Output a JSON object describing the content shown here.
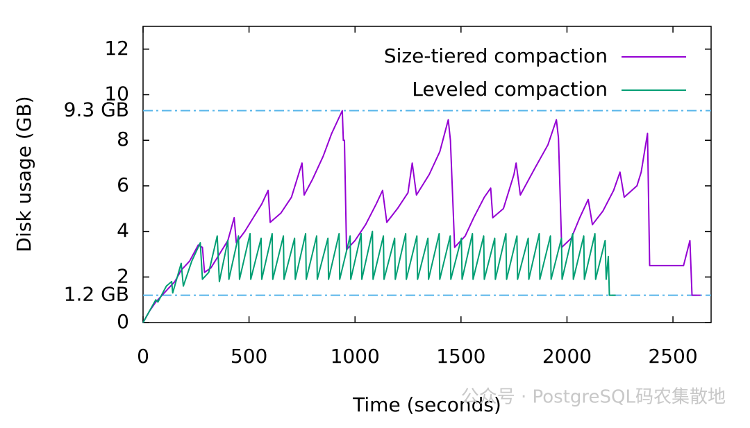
{
  "chart_data": {
    "type": "line",
    "xlabel": "Time (seconds)",
    "ylabel": "Disk usage (GB)",
    "xlim": [
      0,
      2680
    ],
    "ylim": [
      0,
      13
    ],
    "xticks": [
      0,
      500,
      1000,
      1500,
      2000,
      2500
    ],
    "yticks": [
      0,
      2,
      4,
      6,
      8,
      10,
      12
    ],
    "grid": false,
    "legend": "top-right",
    "reference_lines": [
      {
        "value": 9.3,
        "label": "9.3 GB",
        "color": "#56b4e9"
      },
      {
        "value": 1.2,
        "label": "1.2 GB",
        "color": "#56b4e9"
      }
    ],
    "series": [
      {
        "name": "Size-tiered compaction",
        "color": "#9400d3",
        "x": [
          0,
          30,
          60,
          90,
          120,
          150,
          180,
          220,
          260,
          280,
          290,
          320,
          360,
          400,
          430,
          440,
          480,
          520,
          560,
          590,
          600,
          650,
          700,
          750,
          760,
          800,
          850,
          890,
          940,
          945,
          950,
          960,
          1000,
          1050,
          1100,
          1130,
          1150,
          1200,
          1250,
          1270,
          1290,
          1350,
          1400,
          1440,
          1450,
          1470,
          1520,
          1560,
          1610,
          1640,
          1650,
          1700,
          1750,
          1760,
          1780,
          1850,
          1910,
          1950,
          1960,
          1975,
          2020,
          2060,
          2100,
          2120,
          2170,
          2220,
          2250,
          2270,
          2330,
          2350,
          2380,
          2390,
          2420,
          2550,
          2580,
          2590,
          2630
        ],
        "values": [
          0,
          0.5,
          0.9,
          1.2,
          1.5,
          1.8,
          2.3,
          2.7,
          3.4,
          3.3,
          2.2,
          2.4,
          3.0,
          3.6,
          4.6,
          3.5,
          4.0,
          4.6,
          5.2,
          5.8,
          4.4,
          4.8,
          5.5,
          7.0,
          5.6,
          6.3,
          7.3,
          8.3,
          9.3,
          8.0,
          8.0,
          3.2,
          3.6,
          4.3,
          5.2,
          5.8,
          4.4,
          5.0,
          5.7,
          7.0,
          5.6,
          6.5,
          7.5,
          8.9,
          8.0,
          3.3,
          3.8,
          4.6,
          5.5,
          5.9,
          4.6,
          5.0,
          6.5,
          7.0,
          5.6,
          6.8,
          7.8,
          8.9,
          8.1,
          3.3,
          3.7,
          4.6,
          5.4,
          4.3,
          4.9,
          5.8,
          6.6,
          5.5,
          6.0,
          6.6,
          8.3,
          2.5,
          2.5,
          2.5,
          3.6,
          1.2,
          1.2
        ]
      },
      {
        "name": "Leveled compaction",
        "color": "#009e73",
        "x": [
          0,
          60,
          70,
          110,
          135,
          140,
          180,
          190,
          230,
          270,
          280,
          310,
          350,
          360,
          400,
          405,
          450,
          455,
          505,
          508,
          557,
          560,
          609,
          612,
          662,
          665,
          715,
          718,
          767,
          770,
          819,
          822,
          872,
          875,
          925,
          928,
          977,
          980,
          1029,
          1032,
          1082,
          1085,
          1134,
          1137,
          1187,
          1190,
          1239,
          1242,
          1292,
          1295,
          1344,
          1347,
          1397,
          1400,
          1449,
          1452,
          1502,
          1505,
          1554,
          1557,
          1607,
          1610,
          1659,
          1662,
          1712,
          1715,
          1764,
          1767,
          1817,
          1820,
          1869,
          1872,
          1922,
          1925,
          1974,
          1977,
          2027,
          2030,
          2079,
          2082,
          2132,
          2135,
          2180,
          2185,
          2195,
          2200,
          2230
        ],
        "values": [
          0,
          1.0,
          0.9,
          1.6,
          1.8,
          1.3,
          2.6,
          1.6,
          2.7,
          3.5,
          1.9,
          2.2,
          3.8,
          1.8,
          3.6,
          1.9,
          3.8,
          1.9,
          3.9,
          1.9,
          3.7,
          1.9,
          3.9,
          1.9,
          3.8,
          1.9,
          3.7,
          1.9,
          3.9,
          1.9,
          3.8,
          1.9,
          3.7,
          1.9,
          3.9,
          1.9,
          3.8,
          1.9,
          3.9,
          1.9,
          4.0,
          1.9,
          3.8,
          1.9,
          3.7,
          1.9,
          3.9,
          1.9,
          3.8,
          1.9,
          3.7,
          1.9,
          3.9,
          1.9,
          3.8,
          1.9,
          3.7,
          1.9,
          3.9,
          1.9,
          3.8,
          1.9,
          3.7,
          1.9,
          3.9,
          1.9,
          3.8,
          1.9,
          3.7,
          1.9,
          3.9,
          1.9,
          3.8,
          1.9,
          3.7,
          1.9,
          3.9,
          1.9,
          3.8,
          1.9,
          3.9,
          1.9,
          3.6,
          1.9,
          2.9,
          1.2,
          1.2
        ]
      }
    ]
  },
  "watermark": "公众号 · PostgreSQL码农集散地"
}
